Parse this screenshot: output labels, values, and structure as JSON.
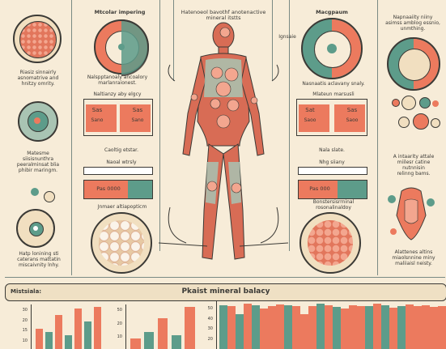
{
  "left_col": {
    "caption1": "Riasiz sinnairly\nasnomatrive and hnitzy omrity.",
    "caption2": "Matesme\nsiisisnunthra\npeeralminsat blia\nphibir maringm.",
    "caption3": "Hatp lonining sti\ncaterans mattatin\nmiscaivnity lnhy."
  },
  "mid_left": {
    "heading": "Mtcolar impering",
    "caption1": "Nalspptanoaly ancoalory\nmarlanraionest.",
    "caption2": "Naltianzy aby elgcy",
    "box1_left": "Sas",
    "box1_right": "Sas",
    "box1_left2": "Sano",
    "box1_right2": "Sano",
    "caption3": "Caoltig etstar.",
    "caption4": "Naoal wtrsly",
    "box2_label": "Pas 0000",
    "caption5": "Jnmaer altiapopticm"
  },
  "center": {
    "title": "Hatenoeol bavothf anotenactive\nmineral itstts"
  },
  "mid_right": {
    "heading": "Macgpaum",
    "sub": "Ignsaie",
    "caption1": "Nasnaatis aclavany snaly.",
    "caption2": "Mlateun marsusli",
    "box1_left": "Sat",
    "box1_right": "Sas",
    "box1_left2": "Saoo",
    "box1_right2": "Saoo",
    "caption3": "Nala slate.",
    "caption4": "Nhg siiany",
    "box2_label": "Pas 000",
    "caption5": "Bonstersisrrninal\nrosonalinaldoy"
  },
  "right_col": {
    "caption1": "Napnaaiity niiny\nasimss amblog essnio,\nunmthing.",
    "caption2": "A intaarity attale\nmiilesr catine\nnutnnisin\nrelinng bams.",
    "caption3": "Alattenes altins\nmiaolsnnine miny\nmaliiaisl neisty."
  },
  "banner": {
    "left_label": "Mistsiala:",
    "title": "Pkaist mineral balacy"
  },
  "chart_data": [
    {
      "type": "bar",
      "title": "",
      "yticks": [
        "30",
        "20",
        "15",
        "10"
      ],
      "series": [
        {
          "values": [
            12,
            10,
            20,
            8,
            24,
            16,
            25
          ]
        }
      ]
    },
    {
      "type": "bar",
      "title": "",
      "yticks": [
        "50",
        "20",
        "10"
      ],
      "series": [
        {
          "values": [
            6,
            10,
            18,
            8,
            25
          ]
        }
      ]
    },
    {
      "type": "bar",
      "title": "",
      "yticks": [
        "50",
        "40",
        "30",
        "20"
      ],
      "series": [
        {
          "values": [
            60,
            58,
            48,
            62,
            60,
            55,
            58,
            61,
            60,
            59,
            47,
            58,
            62,
            60,
            57,
            55,
            60,
            59,
            58,
            62,
            60,
            56,
            59,
            61,
            58,
            60,
            57,
            59
          ]
        }
      ]
    }
  ],
  "colors": {
    "coral": "#ec7a5e",
    "teal": "#5d9c8a",
    "cream": "#f7ecd8",
    "dark": "#3b3a36",
    "body_red": "#d86c55"
  }
}
